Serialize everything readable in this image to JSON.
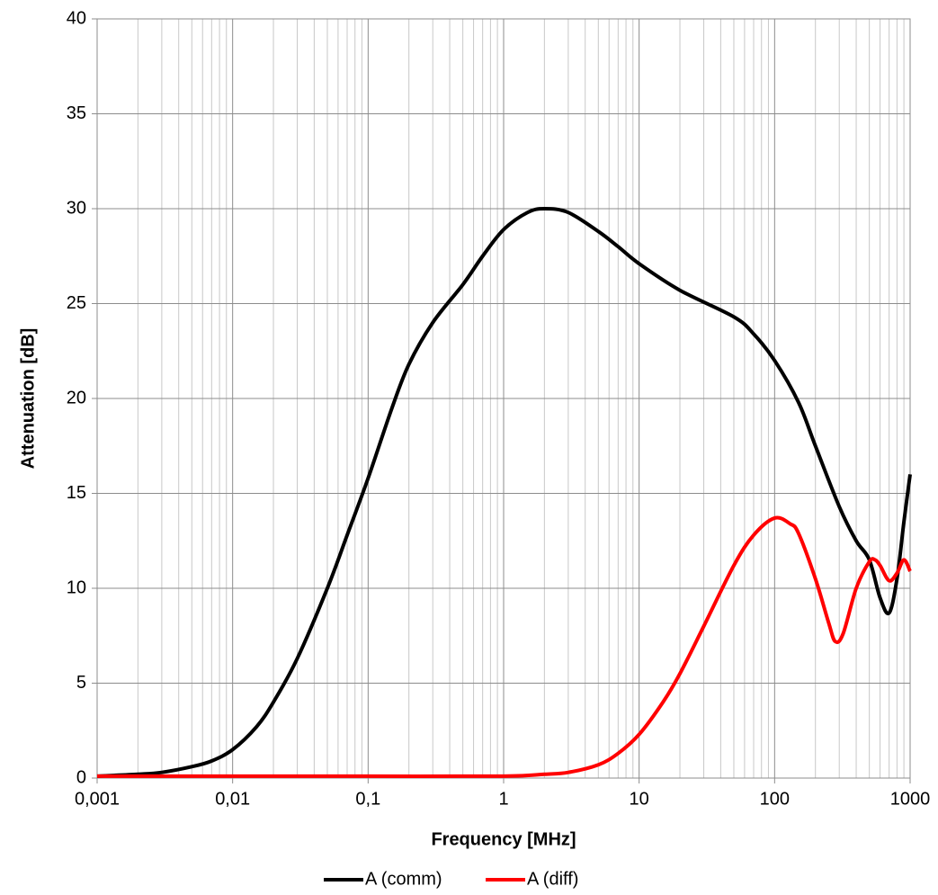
{
  "chart_data": {
    "type": "line",
    "xlabel": "Frequency [MHz]",
    "ylabel": "Attenuation [dB]",
    "xscale": "log",
    "xlim": [
      0.001,
      1000
    ],
    "ylim": [
      0,
      40
    ],
    "xticks": [
      {
        "value": 0.001,
        "label": "0,001"
      },
      {
        "value": 0.01,
        "label": "0,01"
      },
      {
        "value": 0.1,
        "label": "0,1"
      },
      1,
      10,
      100,
      1000
    ],
    "yticks": [
      0,
      5,
      10,
      15,
      20,
      25,
      30,
      35,
      40
    ],
    "x_minor_grid": [
      0.002,
      0.003,
      0.004,
      0.005,
      0.006,
      0.007,
      0.008,
      0.009,
      0.02,
      0.03,
      0.04,
      0.05,
      0.06,
      0.07,
      0.08,
      0.09,
      0.2,
      0.3,
      0.4,
      0.5,
      0.6,
      0.7,
      0.8,
      0.9,
      2,
      3,
      4,
      5,
      6,
      7,
      8,
      9,
      20,
      30,
      40,
      50,
      60,
      70,
      80,
      90,
      200,
      300,
      400,
      500,
      600,
      700,
      800,
      900
    ],
    "grid": true,
    "legend": "bottom",
    "series": [
      {
        "name": "A (comm)",
        "color": "#000000",
        "x": [
          0.001,
          0.002,
          0.003,
          0.005,
          0.007,
          0.01,
          0.015,
          0.02,
          0.03,
          0.05,
          0.07,
          0.1,
          0.15,
          0.2,
          0.3,
          0.5,
          0.7,
          1,
          1.5,
          2,
          3,
          5,
          7,
          10,
          20,
          50,
          70,
          100,
          150,
          200,
          300,
          400,
          500,
          600,
          700,
          800,
          900,
          1000
        ],
        "values": [
          0.1,
          0.2,
          0.3,
          0.6,
          0.9,
          1.5,
          2.7,
          4.0,
          6.3,
          10.0,
          12.8,
          15.8,
          19.5,
          21.8,
          24.0,
          26.0,
          27.5,
          28.9,
          29.8,
          30.0,
          29.8,
          28.8,
          28.0,
          27.1,
          25.7,
          24.3,
          23.4,
          22.0,
          19.8,
          17.5,
          14.3,
          12.5,
          11.5,
          9.5,
          8.7,
          10.5,
          13.5,
          16.0
        ]
      },
      {
        "name": "A (diff)",
        "color": "#ff0000",
        "x": [
          0.001,
          0.01,
          0.1,
          1,
          2,
          3,
          5,
          7,
          10,
          15,
          20,
          30,
          50,
          70,
          100,
          130,
          150,
          200,
          250,
          280,
          320,
          400,
          500,
          550,
          600,
          700,
          800,
          900,
          1000
        ],
        "values": [
          0.1,
          0.1,
          0.1,
          0.1,
          0.2,
          0.3,
          0.7,
          1.3,
          2.3,
          4.0,
          5.5,
          8.0,
          11.2,
          12.8,
          13.7,
          13.4,
          12.9,
          10.5,
          8.2,
          7.2,
          7.6,
          10.0,
          11.4,
          11.5,
          11.2,
          10.4,
          10.8,
          11.5,
          10.9
        ]
      }
    ]
  }
}
